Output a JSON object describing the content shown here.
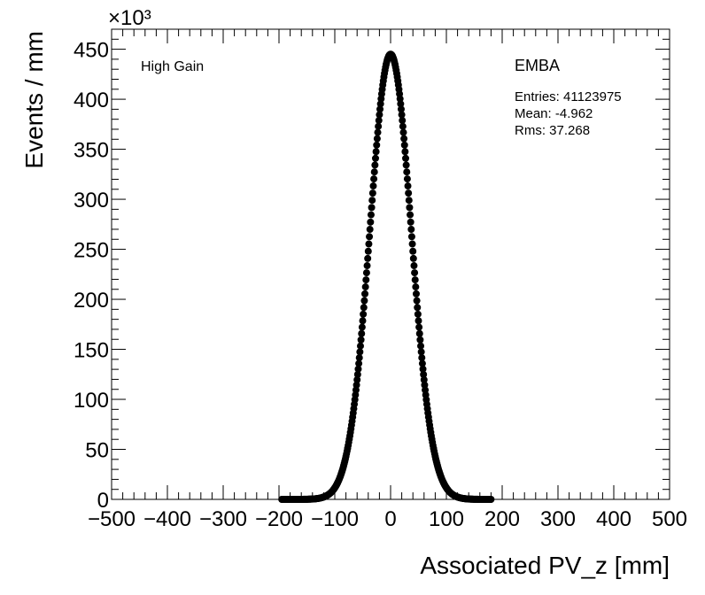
{
  "chart_data": {
    "type": "scatter",
    "title": "",
    "xlabel": "Associated PV_z [mm]",
    "ylabel": "Events / mm",
    "y_multiplier": "×10³",
    "xlim": [
      -500,
      500
    ],
    "ylim": [
      0,
      470
    ],
    "x_ticks": [
      "−500",
      "−400",
      "−300",
      "−200",
      "−100",
      "0",
      "100",
      "200",
      "300",
      "400",
      "500"
    ],
    "y_ticks": [
      "0",
      "50",
      "100",
      "150",
      "200",
      "250",
      "300",
      "350",
      "400",
      "450"
    ],
    "grid": false,
    "annotations": {
      "left": "High Gain",
      "right_title": "EMBA",
      "entries": "Entries: 41123975",
      "mean": "Mean: -4.962",
      "rms": "Rms: 37.268"
    },
    "series": [
      {
        "name": "",
        "color": "#000000",
        "distribution": {
          "x_min": -195,
          "x_max": 180,
          "bin_width": 1,
          "peak_x": 0,
          "peak_y": 445,
          "sigma": 37.0
        }
      }
    ]
  }
}
